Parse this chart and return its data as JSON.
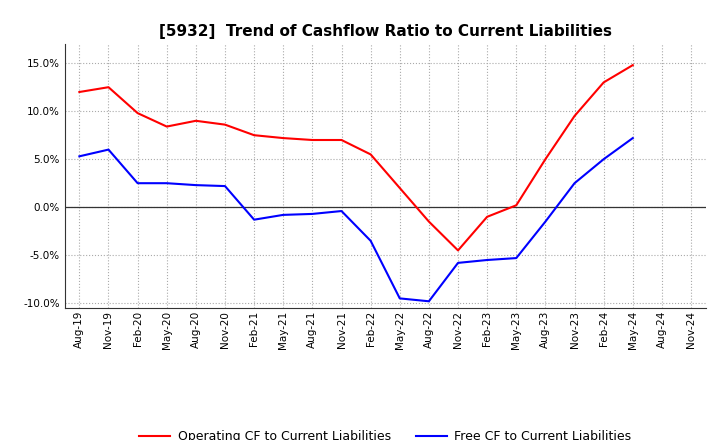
{
  "title": "[5932]  Trend of Cashflow Ratio to Current Liabilities",
  "x_labels": [
    "Aug-19",
    "Nov-19",
    "Feb-20",
    "May-20",
    "Aug-20",
    "Nov-20",
    "Feb-21",
    "May-21",
    "Aug-21",
    "Nov-21",
    "Feb-22",
    "May-22",
    "Aug-22",
    "Nov-22",
    "Feb-23",
    "May-23",
    "Aug-23",
    "Nov-23",
    "Feb-24",
    "May-24",
    "Aug-24",
    "Nov-24"
  ],
  "operating_cf": [
    12.0,
    12.5,
    9.8,
    8.4,
    9.0,
    8.6,
    7.5,
    7.2,
    7.0,
    7.0,
    5.5,
    2.0,
    -1.5,
    -4.5,
    -1.0,
    0.2,
    5.0,
    9.5,
    13.0,
    14.8,
    null,
    null
  ],
  "free_cf": [
    5.3,
    6.0,
    2.5,
    2.5,
    2.3,
    2.2,
    -1.3,
    -0.8,
    -0.7,
    -0.4,
    -3.5,
    -9.5,
    -9.8,
    -5.8,
    -5.5,
    -5.3,
    -1.5,
    2.5,
    5.0,
    7.2,
    null,
    null
  ],
  "operating_color": "#FF0000",
  "free_color": "#0000FF",
  "ylim": [
    -10.5,
    17.0
  ],
  "yticks": [
    -10.0,
    -5.0,
    0.0,
    5.0,
    10.0,
    15.0
  ],
  "background_color": "#FFFFFF",
  "grid_color": "#AAAAAA",
  "legend_operating": "Operating CF to Current Liabilities",
  "legend_free": "Free CF to Current Liabilities",
  "title_fontsize": 11,
  "tick_fontsize": 7.5,
  "legend_fontsize": 9
}
